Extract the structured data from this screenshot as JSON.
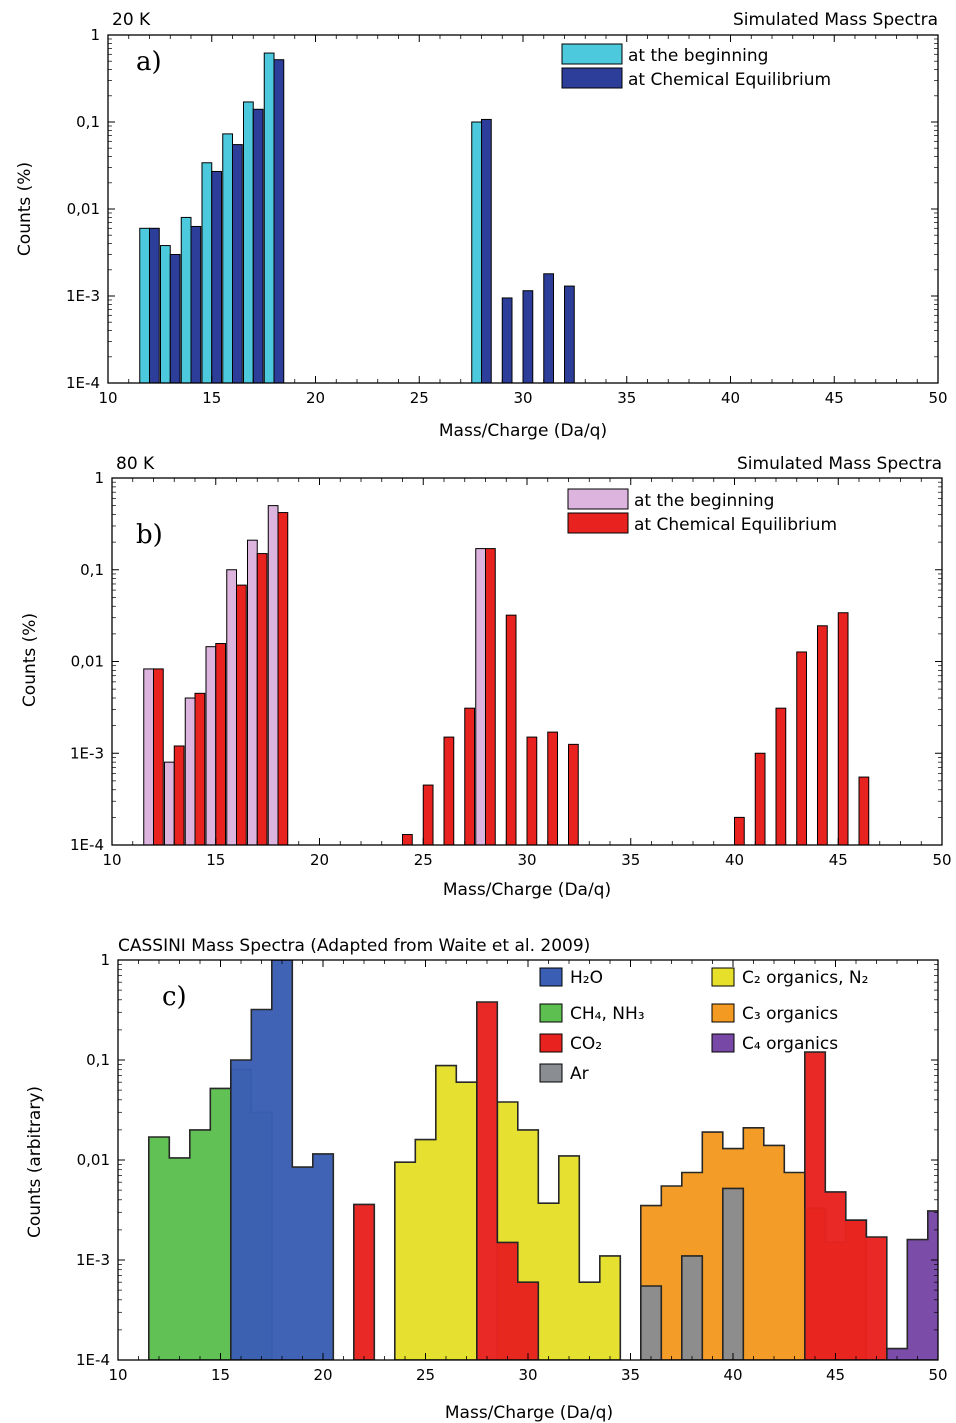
{
  "figure": {
    "panels": [
      {
        "id": "a",
        "letter": "a)",
        "header_left": "20 K",
        "header_right": "Simulated Mass Spectra",
        "xlabel": "Mass/Charge (Da/q)",
        "ylabel": "Counts (%)"
      },
      {
        "id": "b",
        "letter": "b)",
        "header_left": "80 K",
        "header_right": "Simulated Mass Spectra",
        "xlabel": "Mass/Charge (Da/q)",
        "ylabel": "Counts (%)"
      },
      {
        "id": "c",
        "letter": "c)",
        "title": "CASSINI Mass Spectra (Adapted from Waite et al. 2009)",
        "xlabel": "Mass/Charge (Da/q)",
        "ylabel": "Counts (arbitrary)"
      }
    ]
  },
  "chart_data": [
    {
      "type": "bar",
      "panel": "a",
      "title": "Simulated Mass Spectra",
      "subtitle": "20 K",
      "xlabel": "Mass/Charge (Da/q)",
      "ylabel": "Counts (%)",
      "xlim": [
        10,
        50
      ],
      "ylim": [
        0.0001,
        1
      ],
      "yscale": "log",
      "xticks": [
        10,
        15,
        20,
        25,
        30,
        35,
        40,
        45,
        50
      ],
      "yticks": [
        {
          "value": 0.0001,
          "label": "1E-4"
        },
        {
          "value": 0.001,
          "label": "1E-3"
        },
        {
          "value": 0.01,
          "label": "0,01"
        },
        {
          "value": 0.1,
          "label": "0,1"
        },
        {
          "value": 1,
          "label": "1"
        }
      ],
      "legend_position": "top-right",
      "series": [
        {
          "name": "at the beginning",
          "color": "#4dc9dd",
          "points": [
            [
              12,
              0.006
            ],
            [
              13,
              0.0038
            ],
            [
              14,
              0.008
            ],
            [
              15,
              0.034
            ],
            [
              16,
              0.073
            ],
            [
              17,
              0.17
            ],
            [
              18,
              0.62
            ],
            [
              28,
              0.1
            ]
          ]
        },
        {
          "name": "at Chemical Equilibrium",
          "color": "#2c3e9a",
          "points": [
            [
              12,
              0.006
            ],
            [
              13,
              0.003
            ],
            [
              14,
              0.0063
            ],
            [
              15,
              0.027
            ],
            [
              16,
              0.055
            ],
            [
              17,
              0.14
            ],
            [
              18,
              0.52
            ],
            [
              28,
              0.107
            ],
            [
              29,
              0.00095
            ],
            [
              30,
              0.00115
            ],
            [
              31,
              0.0018
            ],
            [
              32,
              0.0013
            ]
          ]
        }
      ]
    },
    {
      "type": "bar",
      "panel": "b",
      "title": "Simulated Mass Spectra",
      "subtitle": "80 K",
      "xlabel": "Mass/Charge (Da/q)",
      "ylabel": "Counts (%)",
      "xlim": [
        10,
        50
      ],
      "ylim": [
        0.0001,
        1
      ],
      "yscale": "log",
      "xticks": [
        10,
        15,
        20,
        25,
        30,
        35,
        40,
        45,
        50
      ],
      "yticks": [
        {
          "value": 0.0001,
          "label": "1E-4"
        },
        {
          "value": 0.001,
          "label": "1E-3"
        },
        {
          "value": 0.01,
          "label": "0,01"
        },
        {
          "value": 0.1,
          "label": "0,1"
        },
        {
          "value": 1,
          "label": "1"
        }
      ],
      "legend_position": "top-right",
      "series": [
        {
          "name": "at the beginning",
          "color": "#ddb4dd",
          "points": [
            [
              12,
              0.0083
            ],
            [
              13,
              0.0008
            ],
            [
              14,
              0.004
            ],
            [
              15,
              0.0145
            ],
            [
              16,
              0.1
            ],
            [
              17,
              0.21
            ],
            [
              18,
              0.5
            ],
            [
              28,
              0.17
            ]
          ]
        },
        {
          "name": "at Chemical Equilibrium",
          "color": "#e8231f",
          "points": [
            [
              12,
              0.0083
            ],
            [
              13,
              0.0012
            ],
            [
              14,
              0.0045
            ],
            [
              15,
              0.0157
            ],
            [
              16,
              0.068
            ],
            [
              17,
              0.15
            ],
            [
              18,
              0.42
            ],
            [
              24,
              0.00013
            ],
            [
              25,
              0.00045
            ],
            [
              26,
              0.0015
            ],
            [
              27,
              0.0031
            ],
            [
              28,
              0.17
            ],
            [
              29,
              0.032
            ],
            [
              30,
              0.0015
            ],
            [
              31,
              0.0017
            ],
            [
              32,
              0.00125
            ],
            [
              40,
              0.0002
            ],
            [
              41,
              0.001
            ],
            [
              42,
              0.0031
            ],
            [
              43,
              0.0127
            ],
            [
              44,
              0.0245
            ],
            [
              45,
              0.034
            ],
            [
              46,
              0.00055
            ]
          ]
        }
      ]
    },
    {
      "type": "area",
      "panel": "c",
      "title": "CASSINI Mass Spectra (Adapted from Waite et al. 2009)",
      "xlabel": "Mass/Charge (Da/q)",
      "ylabel": "Counts (arbitrary)",
      "xlim": [
        10,
        50
      ],
      "ylim": [
        0.0001,
        1
      ],
      "yscale": "log",
      "xticks": [
        10,
        15,
        20,
        25,
        30,
        35,
        40,
        45,
        50
      ],
      "yticks": [
        {
          "value": 0.0001,
          "label": "1E-4"
        },
        {
          "value": 0.001,
          "label": "1E-3"
        },
        {
          "value": 0.01,
          "label": "0,01"
        },
        {
          "value": 0.1,
          "label": "0,1"
        },
        {
          "value": 1,
          "label": "1"
        }
      ],
      "legend_position": "top-right",
      "series": [
        {
          "name": "H₂O",
          "color": "#3a5eb3",
          "steps": [
            [
              15.5,
              0.1
            ],
            [
              16.5,
              0.32
            ],
            [
              17.5,
              1.0
            ],
            [
              18.5,
              0.0085
            ],
            [
              19.5,
              0.0115
            ]
          ],
          "end": 20.5
        },
        {
          "name": "CH₄, NH₃",
          "color": "#5cbf4f",
          "steps": [
            [
              11.5,
              0.017
            ],
            [
              12.5,
              0.0105
            ],
            [
              13.5,
              0.02
            ],
            [
              14.5,
              0.052
            ],
            [
              15.5,
              0.08
            ],
            [
              16.5,
              0.03
            ]
          ],
          "end": 17.5
        },
        {
          "name": "CO₂",
          "color": "#e8231f",
          "steps": [
            [
              21.5,
              0.0036
            ],
            [
              27.5,
              0.38
            ],
            [
              28.5,
              0.0015
            ],
            [
              29.5,
              0.0006
            ],
            [
              43.5,
              0.12
            ],
            [
              44.5,
              0.0048
            ],
            [
              45.5,
              0.0025
            ],
            [
              46.5,
              0.0017
            ]
          ],
          "end": 47.5
        },
        {
          "name": "Ar",
          "color": "#8a8d91",
          "steps": [
            [
              35.5,
              0.00055
            ],
            [
              37.5,
              0.0011
            ],
            [
              39.5,
              0.0052
            ]
          ],
          "end": 40.5
        },
        {
          "name": "C₂ organics, N₂",
          "color": "#e6e02a",
          "steps": [
            [
              23.5,
              0.0095
            ],
            [
              24.5,
              0.016
            ],
            [
              25.5,
              0.088
            ],
            [
              26.5,
              0.06
            ],
            [
              28.5,
              0.038
            ],
            [
              29.5,
              0.02
            ],
            [
              30.5,
              0.0037
            ],
            [
              31.5,
              0.011
            ],
            [
              32.5,
              0.0006
            ],
            [
              33.5,
              0.0011
            ]
          ],
          "end": 34.5
        },
        {
          "name": "C₃ organics",
          "color": "#f39a22",
          "steps": [
            [
              35.5,
              0.0035
            ],
            [
              36.5,
              0.0055
            ],
            [
              37.5,
              0.0075
            ],
            [
              38.5,
              0.019
            ],
            [
              39.5,
              0.013
            ],
            [
              40.5,
              0.021
            ],
            [
              41.5,
              0.014
            ],
            [
              42.5,
              0.0075
            ],
            [
              43.5,
              0.0033
            ],
            [
              44.5,
              0.0015
            ],
            [
              45.5,
              0.0025
            ]
          ],
          "end": 46.5
        },
        {
          "name": "C₄ organics",
          "color": "#7748a6",
          "steps": [
            [
              47.5,
              0.00013
            ],
            [
              48.5,
              0.0016
            ],
            [
              49.5,
              0.0031
            ]
          ],
          "end": 50.5
        }
      ]
    }
  ]
}
